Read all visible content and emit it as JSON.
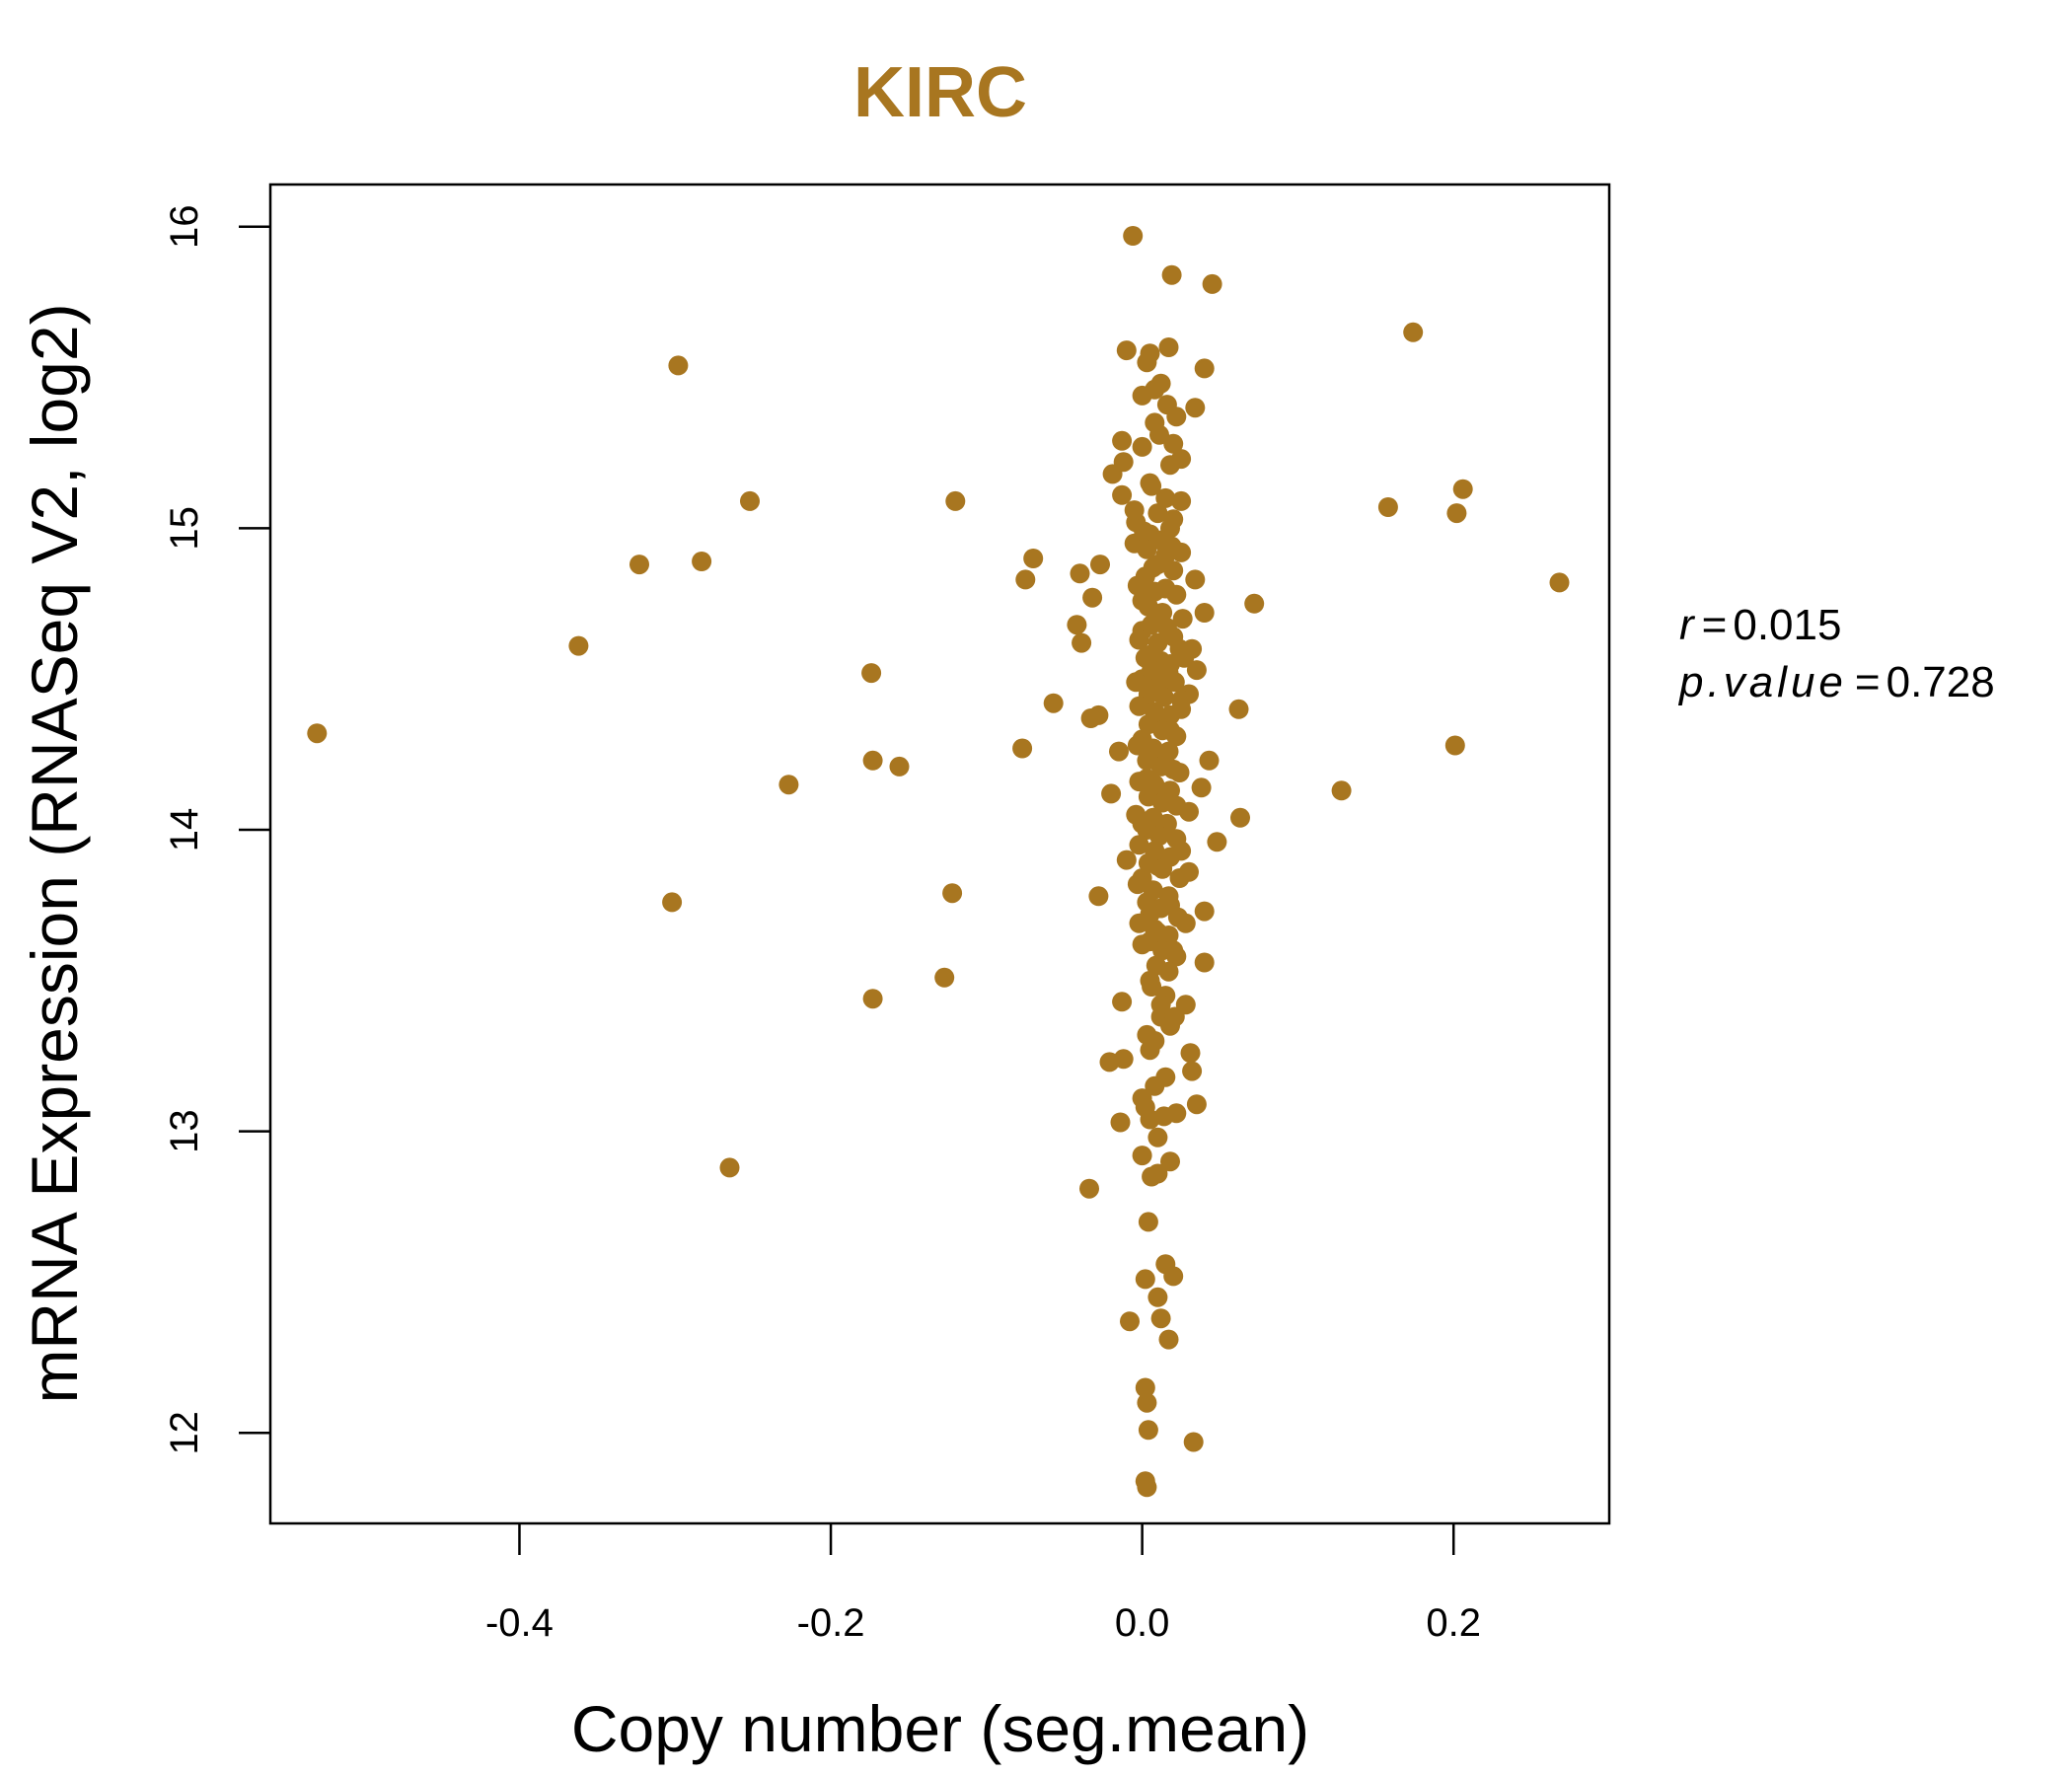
{
  "chart_data": {
    "type": "scatter",
    "title": "KIRC",
    "xlabel": "Copy number (seg.mean)",
    "ylabel": "mRNA Expression (RNASeq V2, log2)",
    "xlim": [
      -0.56,
      0.3
    ],
    "ylim": [
      11.7,
      16.14
    ],
    "xticks": [
      -0.4,
      -0.2,
      0.0,
      0.2
    ],
    "xtick_labels": [
      "-0.4",
      "-0.2",
      "0.0",
      "0.2"
    ],
    "yticks": [
      12,
      13,
      14,
      15,
      16
    ],
    "ytick_labels": [
      "12",
      "13",
      "14",
      "15",
      "16"
    ],
    "point_color": "#a87620",
    "grid": false,
    "stats": {
      "r_label": "r",
      "r_value": "0.015",
      "p_label": "p.value",
      "p_value": "0.728"
    },
    "points": [
      [
        -0.006,
        15.97
      ],
      [
        0.019,
        15.84
      ],
      [
        0.045,
        15.81
      ],
      [
        0.174,
        15.65
      ],
      [
        -0.298,
        15.54
      ],
      [
        -0.01,
        15.59
      ],
      [
        0.005,
        15.58
      ],
      [
        0.017,
        15.6
      ],
      [
        0.003,
        15.55
      ],
      [
        0.04,
        15.53
      ],
      [
        0.012,
        15.48
      ],
      [
        0.0,
        15.44
      ],
      [
        0.016,
        15.41
      ],
      [
        0.034,
        15.4
      ],
      [
        0.022,
        15.37
      ],
      [
        0.008,
        15.35
      ],
      [
        -0.013,
        15.29
      ],
      [
        0.0,
        15.27
      ],
      [
        0.018,
        15.21
      ],
      [
        -0.019,
        15.18
      ],
      [
        0.005,
        15.15
      ],
      [
        -0.012,
        15.22
      ],
      [
        0.206,
        15.13
      ],
      [
        -0.252,
        15.09
      ],
      [
        -0.12,
        15.09
      ],
      [
        -0.013,
        15.11
      ],
      [
        0.025,
        15.09
      ],
      [
        0.158,
        15.07
      ],
      [
        0.202,
        15.05
      ],
      [
        0.01,
        15.05
      ],
      [
        -0.004,
        15.02
      ],
      [
        0.018,
        15.0
      ],
      [
        0.005,
        14.98
      ],
      [
        -0.005,
        14.95
      ],
      [
        0.025,
        14.92
      ],
      [
        -0.07,
        14.9
      ],
      [
        -0.283,
        14.89
      ],
      [
        -0.323,
        14.88
      ],
      [
        -0.027,
        14.88
      ],
      [
        0.01,
        14.88
      ],
      [
        -0.04,
        14.85
      ],
      [
        0.002,
        14.84
      ],
      [
        0.034,
        14.83
      ],
      [
        -0.075,
        14.83
      ],
      [
        0.268,
        14.82
      ],
      [
        0.015,
        14.8
      ],
      [
        -0.032,
        14.77
      ],
      [
        0.0,
        14.76
      ],
      [
        0.072,
        14.75
      ],
      [
        0.04,
        14.72
      ],
      [
        0.01,
        14.7
      ],
      [
        -0.042,
        14.68
      ],
      [
        0.0,
        14.66
      ],
      [
        0.02,
        14.64
      ],
      [
        -0.039,
        14.62
      ],
      [
        -0.362,
        14.61
      ],
      [
        0.032,
        14.6
      ],
      [
        0.005,
        14.58
      ],
      [
        0.018,
        14.55
      ],
      [
        0.035,
        14.53
      ],
      [
        -0.174,
        14.52
      ],
      [
        0.0,
        14.5
      ],
      [
        0.012,
        14.48
      ],
      [
        0.03,
        14.45
      ],
      [
        0.002,
        14.42
      ],
      [
        -0.057,
        14.42
      ],
      [
        0.062,
        14.4
      ],
      [
        0.025,
        14.4
      ],
      [
        -0.028,
        14.38
      ],
      [
        -0.033,
        14.37
      ],
      [
        0.008,
        14.36
      ],
      [
        0.018,
        14.33
      ],
      [
        -0.53,
        14.32
      ],
      [
        0.0,
        14.3
      ],
      [
        0.201,
        14.28
      ],
      [
        -0.077,
        14.27
      ],
      [
        -0.015,
        14.26
      ],
      [
        0.01,
        14.25
      ],
      [
        0.043,
        14.23
      ],
      [
        -0.173,
        14.23
      ],
      [
        -0.156,
        14.21
      ],
      [
        0.02,
        14.2
      ],
      [
        0.003,
        14.17
      ],
      [
        -0.227,
        14.15
      ],
      [
        0.038,
        14.14
      ],
      [
        0.128,
        14.13
      ],
      [
        -0.02,
        14.12
      ],
      [
        0.012,
        14.1
      ],
      [
        0.03,
        14.06
      ],
      [
        0.063,
        14.04
      ],
      [
        0.0,
        14.02
      ],
      [
        0.015,
        14.0
      ],
      [
        0.048,
        13.96
      ],
      [
        0.025,
        13.93
      ],
      [
        -0.01,
        13.9
      ],
      [
        0.01,
        13.88
      ],
      [
        0.03,
        13.86
      ],
      [
        0.0,
        13.84
      ],
      [
        -0.122,
        13.79
      ],
      [
        -0.028,
        13.78
      ],
      [
        0.018,
        13.75
      ],
      [
        -0.302,
        13.76
      ],
      [
        0.005,
        13.72
      ],
      [
        0.04,
        13.73
      ],
      [
        0.028,
        13.69
      ],
      [
        0.01,
        13.66
      ],
      [
        0.0,
        13.62
      ],
      [
        0.02,
        13.6
      ],
      [
        0.04,
        13.56
      ],
      [
        -0.127,
        13.51
      ],
      [
        0.005,
        13.5
      ],
      [
        0.015,
        13.45
      ],
      [
        -0.173,
        13.44
      ],
      [
        -0.013,
        13.43
      ],
      [
        0.028,
        13.42
      ],
      [
        0.012,
        13.38
      ],
      [
        0.003,
        13.32
      ],
      [
        0.018,
        13.35
      ],
      [
        0.031,
        13.26
      ],
      [
        0.005,
        13.27
      ],
      [
        -0.012,
        13.24
      ],
      [
        -0.021,
        13.23
      ],
      [
        0.032,
        13.2
      ],
      [
        0.008,
        13.15
      ],
      [
        0.0,
        13.11
      ],
      [
        0.035,
        13.09
      ],
      [
        0.022,
        13.06
      ],
      [
        -0.014,
        13.03
      ],
      [
        0.005,
        13.04
      ],
      [
        0.01,
        12.98
      ],
      [
        0.0,
        12.92
      ],
      [
        0.018,
        12.9
      ],
      [
        -0.265,
        12.88
      ],
      [
        0.006,
        12.85
      ],
      [
        0.01,
        12.86
      ],
      [
        -0.034,
        12.81
      ],
      [
        0.004,
        12.7
      ],
      [
        0.015,
        12.56
      ],
      [
        0.02,
        12.52
      ],
      [
        0.002,
        12.51
      ],
      [
        0.01,
        12.45
      ],
      [
        0.012,
        12.38
      ],
      [
        -0.008,
        12.37
      ],
      [
        0.017,
        12.31
      ],
      [
        0.002,
        12.15
      ],
      [
        0.003,
        12.1
      ],
      [
        0.004,
        12.01
      ],
      [
        0.033,
        11.97
      ],
      [
        0.002,
        11.84
      ],
      [
        0.003,
        11.82
      ],
      [
        0.008,
        15.46
      ],
      [
        0.025,
        15.23
      ],
      [
        -0.005,
        15.06
      ],
      [
        0.02,
        15.03
      ],
      [
        0.012,
        14.96
      ],
      [
        0.003,
        14.93
      ],
      [
        0.015,
        14.91
      ],
      [
        0.007,
        14.87
      ],
      [
        0.02,
        14.86
      ],
      [
        -0.003,
        14.81
      ],
      [
        0.008,
        14.79
      ],
      [
        0.022,
        14.78
      ],
      [
        0.004,
        14.74
      ],
      [
        0.013,
        14.72
      ],
      [
        0.026,
        14.7
      ],
      [
        0.006,
        14.68
      ],
      [
        0.016,
        14.67
      ],
      [
        -0.002,
        14.63
      ],
      [
        0.01,
        14.62
      ],
      [
        0.024,
        14.6
      ],
      [
        0.002,
        14.57
      ],
      [
        0.012,
        14.56
      ],
      [
        0.027,
        14.57
      ],
      [
        0.006,
        14.53
      ],
      [
        0.017,
        14.52
      ],
      [
        -0.004,
        14.49
      ],
      [
        0.009,
        14.47
      ],
      [
        0.021,
        14.49
      ],
      [
        0.004,
        14.45
      ],
      [
        0.014,
        14.44
      ],
      [
        0.025,
        14.43
      ],
      [
        -0.002,
        14.41
      ],
      [
        0.008,
        14.39
      ],
      [
        0.018,
        14.38
      ],
      [
        0.004,
        14.35
      ],
      [
        0.013,
        14.33
      ],
      [
        0.022,
        14.31
      ],
      [
        -0.003,
        14.28
      ],
      [
        0.007,
        14.27
      ],
      [
        0.017,
        14.26
      ],
      [
        0.003,
        14.23
      ],
      [
        0.012,
        14.21
      ],
      [
        0.024,
        14.19
      ],
      [
        -0.002,
        14.16
      ],
      [
        0.008,
        14.15
      ],
      [
        0.018,
        14.13
      ],
      [
        0.004,
        14.11
      ],
      [
        0.013,
        14.09
      ],
      [
        0.022,
        14.08
      ],
      [
        -0.004,
        14.05
      ],
      [
        0.007,
        14.04
      ],
      [
        0.016,
        14.02
      ],
      [
        0.003,
        14.0
      ],
      [
        0.011,
        13.98
      ],
      [
        0.022,
        13.97
      ],
      [
        -0.002,
        13.95
      ],
      [
        0.008,
        13.93
      ],
      [
        0.018,
        13.91
      ],
      [
        0.004,
        13.89
      ],
      [
        0.013,
        13.87
      ],
      [
        0.024,
        13.84
      ],
      [
        -0.003,
        13.82
      ],
      [
        0.007,
        13.8
      ],
      [
        0.017,
        13.78
      ],
      [
        0.003,
        13.76
      ],
      [
        0.012,
        13.74
      ],
      [
        0.023,
        13.71
      ],
      [
        -0.002,
        13.69
      ],
      [
        0.008,
        13.67
      ],
      [
        0.017,
        13.65
      ],
      [
        0.005,
        13.63
      ],
      [
        0.013,
        13.6
      ],
      [
        0.022,
        13.58
      ],
      [
        0.009,
        13.55
      ],
      [
        0.017,
        13.53
      ],
      [
        0.006,
        13.48
      ],
      [
        0.012,
        13.42
      ],
      [
        0.021,
        13.38
      ],
      [
        0.008,
        13.3
      ],
      [
        0.015,
        13.18
      ],
      [
        0.002,
        13.08
      ],
      [
        0.014,
        13.05
      ],
      [
        0.019,
        14.94
      ],
      [
        0.001,
        14.99
      ],
      [
        0.015,
        15.1
      ],
      [
        0.006,
        15.14
      ],
      [
        0.011,
        15.31
      ],
      [
        0.02,
        15.28
      ]
    ]
  }
}
